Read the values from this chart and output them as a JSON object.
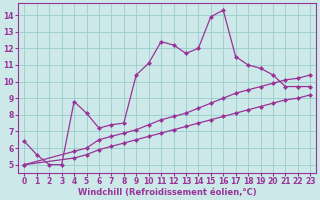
{
  "bg_color": "#cce8e8",
  "grid_color": "#99cccc",
  "line_color": "#993399",
  "markersize": 2.5,
  "linewidth": 0.9,
  "xlabel": "Windchill (Refroidissement éolien,°C)",
  "xlabel_fontsize": 6.0,
  "tick_fontsize": 5.5,
  "xlim": [
    -0.5,
    23.5
  ],
  "ylim": [
    4.5,
    14.7
  ],
  "yticks": [
    5,
    6,
    7,
    8,
    9,
    10,
    11,
    12,
    13,
    14
  ],
  "xticks": [
    0,
    1,
    2,
    3,
    4,
    5,
    6,
    7,
    8,
    9,
    10,
    11,
    12,
    13,
    14,
    15,
    16,
    17,
    18,
    19,
    20,
    21,
    22,
    23
  ],
  "curve1_x": [
    0,
    1,
    2,
    3,
    4,
    5,
    6,
    7,
    8,
    9,
    10,
    11,
    12,
    13,
    14,
    15,
    16,
    17,
    18,
    19,
    20,
    21,
    22,
    23
  ],
  "curve1_y": [
    6.4,
    5.6,
    5.0,
    5.0,
    8.8,
    8.1,
    7.2,
    7.4,
    7.5,
    10.4,
    11.1,
    12.4,
    12.2,
    11.7,
    12.0,
    13.9,
    14.3,
    11.5,
    11.0,
    10.8,
    10.4,
    9.7,
    9.7,
    9.7
  ],
  "curve2_x": [
    0,
    4,
    5,
    6,
    7,
    8,
    9,
    10,
    11,
    12,
    13,
    14,
    15,
    16,
    17,
    18,
    19,
    20,
    21,
    22,
    23
  ],
  "curve2_y": [
    5.0,
    5.8,
    6.0,
    6.5,
    6.7,
    6.9,
    7.1,
    7.4,
    7.7,
    7.9,
    8.1,
    8.4,
    8.7,
    9.0,
    9.3,
    9.5,
    9.7,
    9.9,
    10.1,
    10.2,
    10.4
  ],
  "curve3_x": [
    0,
    4,
    5,
    6,
    7,
    8,
    9,
    10,
    11,
    12,
    13,
    14,
    15,
    16,
    17,
    18,
    19,
    20,
    21,
    22,
    23
  ],
  "curve3_y": [
    5.0,
    5.4,
    5.6,
    5.9,
    6.1,
    6.3,
    6.5,
    6.7,
    6.9,
    7.1,
    7.3,
    7.5,
    7.7,
    7.9,
    8.1,
    8.3,
    8.5,
    8.7,
    8.9,
    9.0,
    9.2
  ]
}
